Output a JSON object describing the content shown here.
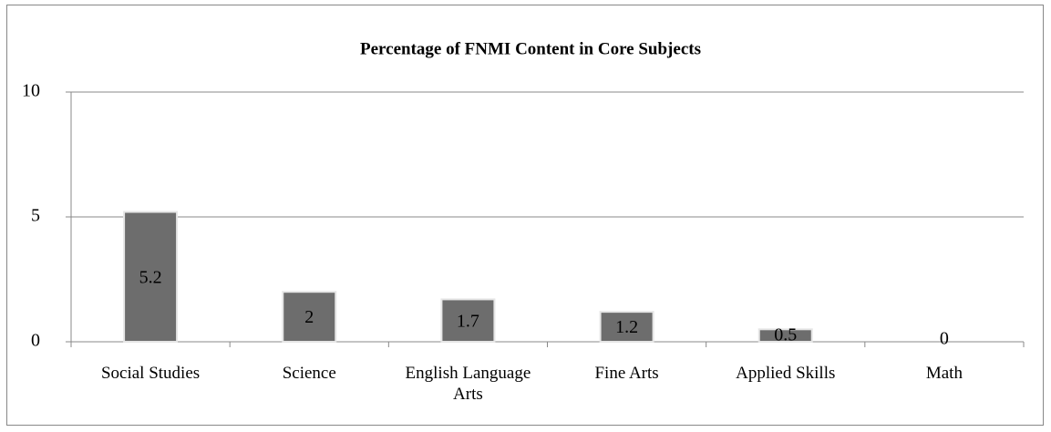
{
  "chart_data": {
    "type": "bar",
    "title": "Percentage of FNMI Content in Core Subjects",
    "categories": [
      "Social Studies",
      "Science",
      "English Language Arts",
      "Fine Arts",
      "Applied Skills",
      "Math"
    ],
    "values": [
      5.2,
      2,
      1.7,
      1.2,
      0.5,
      0
    ],
    "color": "#6d6d6d",
    "ylim": [
      0,
      10
    ],
    "yticks": [
      0,
      5,
      10
    ],
    "grid": true
  }
}
